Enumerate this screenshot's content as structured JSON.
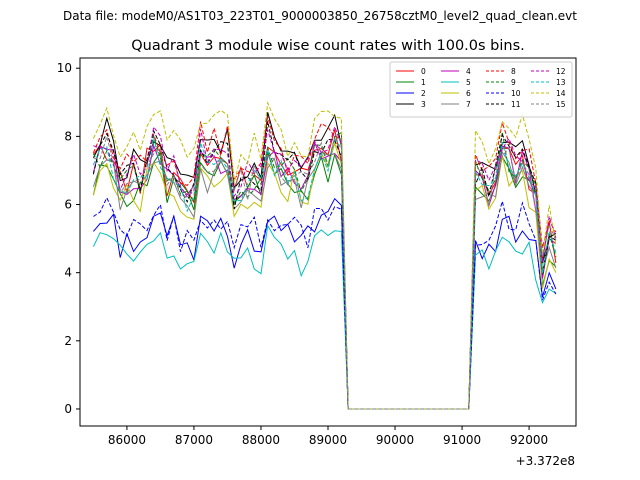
{
  "header": {
    "suptitle": "Data file: modeM0/AS1T03_223T01_9000003850_26758cztM0_level2_quad_clean.evt"
  },
  "chart_data": {
    "type": "line",
    "title": "Quadrant 3 module wise count rates with 100.0s bins.",
    "xlabel": "",
    "ylabel": "",
    "x_offset_label": "+3.372e8",
    "xlim": [
      85300,
      92700
    ],
    "ylim": [
      -0.5,
      10.3
    ],
    "xticks": [
      86000,
      87000,
      88000,
      89000,
      90000,
      91000,
      92000
    ],
    "xtick_labels": [
      "86000",
      "87000",
      "88000",
      "89000",
      "90000",
      "91000",
      "92000"
    ],
    "yticks": [
      0,
      2,
      4,
      6,
      8,
      10
    ],
    "ytick_labels": [
      "0",
      "2",
      "4",
      "6",
      "8",
      "10"
    ],
    "grid": false,
    "legend_placement": "top-right",
    "x_segments": [
      [
        85500,
        89200
      ],
      [
        91200,
        92400
      ]
    ],
    "gap_range": [
      89300,
      91100
    ],
    "gap_value": 0,
    "series": [
      {
        "name": "0",
        "color": "#ff0000",
        "dash": "solid",
        "base": 7.0,
        "seed": 1
      },
      {
        "name": "1",
        "color": "#008000",
        "dash": "solid",
        "base": 6.6,
        "seed": 2
      },
      {
        "name": "2",
        "color": "#0000ff",
        "dash": "solid",
        "base": 5.1,
        "seed": 3
      },
      {
        "name": "3",
        "color": "#000000",
        "dash": "solid",
        "base": 7.4,
        "seed": 4
      },
      {
        "name": "4",
        "color": "#bf00bf",
        "dash": "solid",
        "base": 6.9,
        "seed": 5
      },
      {
        "name": "5",
        "color": "#00bfbf",
        "dash": "solid",
        "base": 4.6,
        "seed": 6
      },
      {
        "name": "6",
        "color": "#bfbf00",
        "dash": "solid",
        "base": 6.5,
        "seed": 7
      },
      {
        "name": "7",
        "color": "#808080",
        "dash": "solid",
        "base": 6.6,
        "seed": 8
      },
      {
        "name": "8",
        "color": "#ff0000",
        "dash": "dashed",
        "base": 7.4,
        "seed": 9
      },
      {
        "name": "9",
        "color": "#008000",
        "dash": "dashed",
        "base": 7.0,
        "seed": 10
      },
      {
        "name": "10",
        "color": "#0000ff",
        "dash": "dashed",
        "base": 5.3,
        "seed": 11
      },
      {
        "name": "11",
        "color": "#000000",
        "dash": "dashed",
        "base": 7.1,
        "seed": 12
      },
      {
        "name": "12",
        "color": "#bf00bf",
        "dash": "dashed",
        "base": 7.2,
        "seed": 13
      },
      {
        "name": "13",
        "color": "#00bfbf",
        "dash": "dashed",
        "base": 6.8,
        "seed": 14
      },
      {
        "name": "14",
        "color": "#bfbf00",
        "dash": "dashed",
        "base": 7.9,
        "seed": 15
      },
      {
        "name": "15",
        "color": "#808080",
        "dash": "dashed",
        "base": 6.9,
        "seed": 16
      }
    ]
  }
}
